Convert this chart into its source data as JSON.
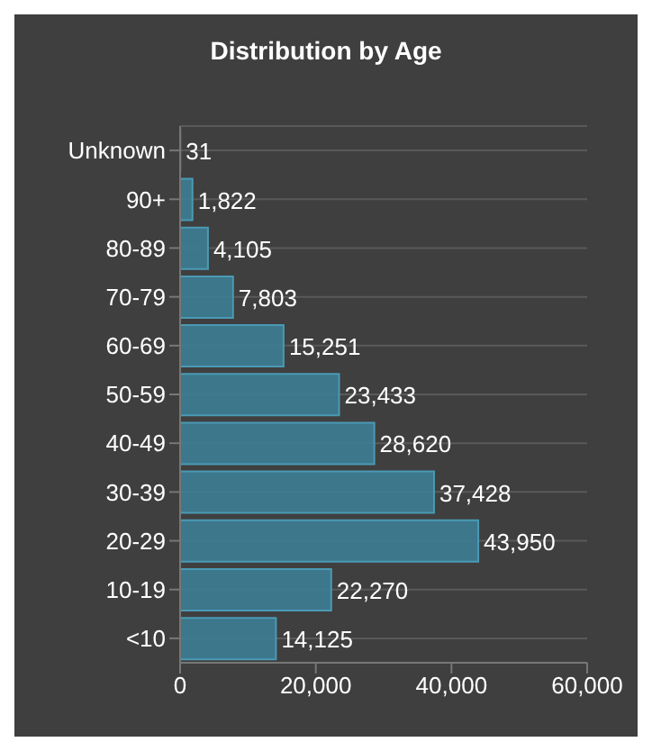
{
  "chart_data": {
    "type": "bar",
    "title": "Distribution by Age",
    "orientation": "horizontal",
    "categories": [
      "Unknown",
      "90+",
      "80-89",
      "70-79",
      "60-69",
      "50-59",
      "40-49",
      "30-39",
      "20-29",
      "10-19",
      "<10"
    ],
    "values": [
      31,
      1822,
      4105,
      7803,
      15251,
      23433,
      28620,
      37428,
      43950,
      22270,
      14125
    ],
    "value_labels": [
      "31",
      "1,822",
      "4,105",
      "7,803",
      "15,251",
      "23,433",
      "28,620",
      "37,428",
      "43,950",
      "22,270",
      "14,125"
    ],
    "color": "#3d7d93",
    "xlim": [
      0,
      60000
    ],
    "xticks": [
      0,
      {
        "value": 20000,
        "label": "20,000"
      },
      {
        "value": 40000,
        "label": "40,000"
      },
      {
        "value": 60000,
        "label": "60,000"
      }
    ],
    "grid": "y",
    "legend": false
  }
}
